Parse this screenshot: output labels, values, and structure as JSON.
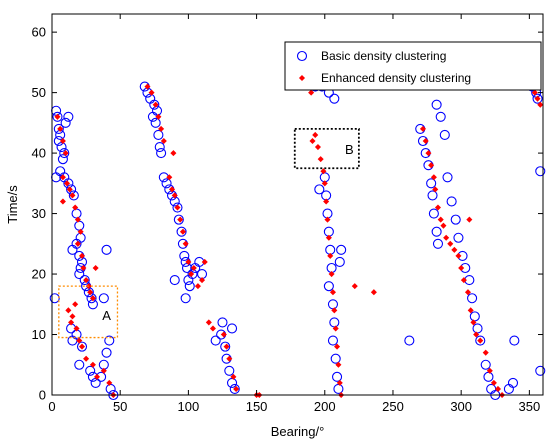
{
  "chart_data": {
    "type": "scatter",
    "xlabel": "Bearing/°",
    "ylabel": "Time/s",
    "xlim": [
      0,
      360
    ],
    "ylim": [
      0,
      63
    ],
    "xticks": [
      0,
      50,
      100,
      150,
      200,
      250,
      300,
      350
    ],
    "yticks": [
      0,
      10,
      20,
      30,
      40,
      50,
      60
    ],
    "grid": false,
    "legend_position": "top-right",
    "series": [
      {
        "name": "Basic density clustering",
        "marker": "open-circle",
        "color": "#0000ff",
        "points": [
          [
            3,
            47
          ],
          [
            4,
            46
          ],
          [
            5,
            44
          ],
          [
            6,
            43
          ],
          [
            5,
            42
          ],
          [
            7,
            41
          ],
          [
            9,
            40
          ],
          [
            8,
            39
          ],
          [
            10,
            45
          ],
          [
            12,
            46
          ],
          [
            6,
            37
          ],
          [
            9,
            36
          ],
          [
            12,
            35
          ],
          [
            14,
            34
          ],
          [
            16,
            33
          ],
          [
            18,
            30
          ],
          [
            20,
            28
          ],
          [
            21,
            26
          ],
          [
            18,
            25
          ],
          [
            15,
            24
          ],
          [
            20,
            23
          ],
          [
            22,
            22
          ],
          [
            21,
            21
          ],
          [
            20,
            20
          ],
          [
            24,
            19
          ],
          [
            25,
            18
          ],
          [
            27,
            17
          ],
          [
            29,
            16
          ],
          [
            30,
            15
          ],
          [
            14,
            11
          ],
          [
            18,
            10
          ],
          [
            15,
            9
          ],
          [
            22,
            8
          ],
          [
            20,
            5
          ],
          [
            28,
            4
          ],
          [
            30,
            3
          ],
          [
            32,
            2
          ],
          [
            36,
            3
          ],
          [
            38,
            5
          ],
          [
            40,
            7
          ],
          [
            42,
            9
          ],
          [
            43,
            1
          ],
          [
            45,
            0
          ],
          [
            40,
            24
          ],
          [
            38,
            16
          ],
          [
            2,
            16
          ],
          [
            3,
            36
          ],
          [
            68,
            51
          ],
          [
            70,
            50
          ],
          [
            72,
            49
          ],
          [
            75,
            48
          ],
          [
            77,
            47
          ],
          [
            74,
            46
          ],
          [
            76,
            45
          ],
          [
            78,
            43
          ],
          [
            79,
            41
          ],
          [
            80,
            40
          ],
          [
            82,
            36
          ],
          [
            84,
            35
          ],
          [
            86,
            34
          ],
          [
            88,
            33
          ],
          [
            90,
            32
          ],
          [
            92,
            31
          ],
          [
            93,
            29
          ],
          [
            95,
            27
          ],
          [
            96,
            25
          ],
          [
            97,
            23
          ],
          [
            98,
            22
          ],
          [
            99,
            21
          ],
          [
            100,
            19
          ],
          [
            101,
            18
          ],
          [
            103,
            20
          ],
          [
            105,
            21
          ],
          [
            108,
            22
          ],
          [
            110,
            20
          ],
          [
            98,
            16
          ],
          [
            90,
            19
          ],
          [
            125,
            12
          ],
          [
            124,
            10
          ],
          [
            127,
            8
          ],
          [
            128,
            6
          ],
          [
            130,
            4
          ],
          [
            132,
            2
          ],
          [
            134,
            1
          ],
          [
            132,
            11
          ],
          [
            120,
            9
          ],
          [
            193,
            51
          ],
          [
            195,
            52
          ],
          [
            198,
            51
          ],
          [
            203,
            50
          ],
          [
            207,
            49
          ],
          [
            200,
            36
          ],
          [
            201,
            33
          ],
          [
            202,
            30
          ],
          [
            203,
            27
          ],
          [
            204,
            24
          ],
          [
            205,
            21
          ],
          [
            203,
            18
          ],
          [
            206,
            15
          ],
          [
            207,
            12
          ],
          [
            206,
            9
          ],
          [
            208,
            6
          ],
          [
            209,
            3
          ],
          [
            210,
            1
          ],
          [
            212,
            24
          ],
          [
            211,
            22
          ],
          [
            196,
            34
          ],
          [
            270,
            44
          ],
          [
            272,
            42
          ],
          [
            274,
            40
          ],
          [
            276,
            38
          ],
          [
            278,
            35
          ],
          [
            279,
            33
          ],
          [
            280,
            30
          ],
          [
            282,
            27
          ],
          [
            283,
            25
          ],
          [
            282,
            48
          ],
          [
            285,
            46
          ],
          [
            288,
            43
          ],
          [
            290,
            36
          ],
          [
            293,
            32
          ],
          [
            296,
            29
          ],
          [
            298,
            26
          ],
          [
            301,
            23
          ],
          [
            303,
            21
          ],
          [
            306,
            19
          ],
          [
            308,
            16
          ],
          [
            310,
            13
          ],
          [
            312,
            11
          ],
          [
            314,
            9
          ],
          [
            318,
            5
          ],
          [
            320,
            3
          ],
          [
            322,
            1
          ],
          [
            325,
            0
          ],
          [
            335,
            1
          ],
          [
            338,
            2
          ],
          [
            339,
            9
          ],
          [
            262,
            9
          ],
          [
            350,
            52
          ],
          [
            352,
            51
          ],
          [
            355,
            50
          ],
          [
            356,
            49
          ],
          [
            358,
            4
          ],
          [
            358,
            37
          ]
        ]
      },
      {
        "name": "Enhanced density clustering",
        "marker": "filled-diamond",
        "color": "#ff0000",
        "points": [
          [
            4,
            46
          ],
          [
            6,
            44
          ],
          [
            8,
            42
          ],
          [
            10,
            40
          ],
          [
            8,
            36
          ],
          [
            11,
            35
          ],
          [
            13,
            34
          ],
          [
            15,
            33
          ],
          [
            17,
            31
          ],
          [
            19,
            29
          ],
          [
            21,
            27
          ],
          [
            19,
            25
          ],
          [
            22,
            23
          ],
          [
            23,
            21
          ],
          [
            25,
            19
          ],
          [
            27,
            18
          ],
          [
            28,
            17
          ],
          [
            30,
            16
          ],
          [
            12,
            14
          ],
          [
            15,
            13
          ],
          [
            17,
            15
          ],
          [
            14,
            12
          ],
          [
            18,
            11
          ],
          [
            20,
            9
          ],
          [
            22,
            8
          ],
          [
            25,
            6
          ],
          [
            30,
            5
          ],
          [
            33,
            3
          ],
          [
            38,
            4
          ],
          [
            42,
            2
          ],
          [
            45,
            0
          ],
          [
            32,
            21
          ],
          [
            8,
            32
          ],
          [
            70,
            51
          ],
          [
            73,
            50
          ],
          [
            76,
            48
          ],
          [
            78,
            46
          ],
          [
            80,
            44
          ],
          [
            82,
            42
          ],
          [
            89,
            40
          ],
          [
            86,
            36
          ],
          [
            88,
            34
          ],
          [
            90,
            33
          ],
          [
            92,
            31
          ],
          [
            94,
            29
          ],
          [
            96,
            27
          ],
          [
            98,
            25
          ],
          [
            100,
            22
          ],
          [
            102,
            20
          ],
          [
            104,
            21
          ],
          [
            107,
            18
          ],
          [
            110,
            19
          ],
          [
            112,
            22
          ],
          [
            115,
            12
          ],
          [
            118,
            11
          ],
          [
            126,
            10
          ],
          [
            128,
            8
          ],
          [
            130,
            6
          ],
          [
            133,
            3
          ],
          [
            135,
            1
          ],
          [
            150,
            0
          ],
          [
            152,
            0
          ],
          [
            190,
            50
          ],
          [
            193,
            51
          ],
          [
            196,
            52
          ],
          [
            199,
            51
          ],
          [
            191,
            42
          ],
          [
            193,
            43
          ],
          [
            195,
            41
          ],
          [
            197,
            39
          ],
          [
            199,
            37
          ],
          [
            200,
            35
          ],
          [
            201,
            32
          ],
          [
            202,
            29
          ],
          [
            203,
            26
          ],
          [
            204,
            23
          ],
          [
            205,
            20
          ],
          [
            206,
            17
          ],
          [
            207,
            14
          ],
          [
            208,
            11
          ],
          [
            209,
            8
          ],
          [
            210,
            5
          ],
          [
            211,
            2
          ],
          [
            212,
            0
          ],
          [
            222,
            18
          ],
          [
            236,
            17
          ],
          [
            272,
            44
          ],
          [
            274,
            42
          ],
          [
            276,
            40
          ],
          [
            278,
            38
          ],
          [
            280,
            36
          ],
          [
            281,
            34
          ],
          [
            283,
            31
          ],
          [
            285,
            29
          ],
          [
            287,
            28
          ],
          [
            289,
            26
          ],
          [
            292,
            25
          ],
          [
            295,
            24
          ],
          [
            298,
            23
          ],
          [
            300,
            21
          ],
          [
            302,
            19
          ],
          [
            305,
            17
          ],
          [
            307,
            14
          ],
          [
            309,
            12
          ],
          [
            311,
            10
          ],
          [
            314,
            9
          ],
          [
            318,
            7
          ],
          [
            321,
            4
          ],
          [
            324,
            2
          ],
          [
            327,
            1
          ],
          [
            330,
            0
          ],
          [
            306,
            29
          ],
          [
            351,
            51
          ],
          [
            354,
            50
          ],
          [
            356,
            49
          ],
          [
            358,
            48
          ]
        ]
      }
    ],
    "annotations": [
      {
        "label": "A",
        "box": {
          "x": [
            5,
            48
          ],
          "y": [
            9.5,
            18
          ]
        },
        "text_at": [
          40,
          13.2
        ],
        "color": "#ff8c00"
      },
      {
        "label": "B",
        "box": {
          "x": [
            178,
            225
          ],
          "y": [
            37.5,
            44
          ]
        },
        "text_at": [
          218,
          40.7
        ],
        "color": "#000000"
      }
    ]
  }
}
